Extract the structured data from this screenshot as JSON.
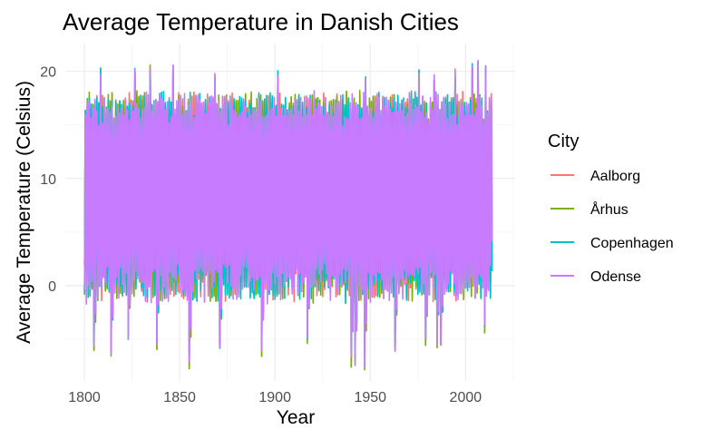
{
  "chart_data": {
    "type": "line",
    "title": "Average Temperature in Danish Cities",
    "xlabel": "Year",
    "ylabel": "Average Temperature (Celsius)",
    "xlim": [
      1790,
      2026
    ],
    "ylim": [
      -8.9,
      22.6
    ],
    "x_ticks": [
      1800,
      1850,
      1900,
      1950,
      2000
    ],
    "y_ticks": [
      0,
      10,
      20
    ],
    "grid": true,
    "legend": {
      "title": "City",
      "position": "right",
      "entries": [
        {
          "name": "Aalborg",
          "color": "#F8766D"
        },
        {
          "name": "Århus",
          "color": "#7CAE00"
        },
        {
          "name": "Copenhagen",
          "color": "#00BFC4"
        },
        {
          "name": "Odense",
          "color": "#C77CFF"
        }
      ]
    },
    "series": [
      {
        "name": "Aalborg",
        "color": "#F8766D",
        "x_range": [
          1800,
          2013
        ],
        "y_range": [
          -6.5,
          20.5
        ]
      },
      {
        "name": "Århus",
        "color": "#7CAE00",
        "x_range": [
          1800,
          2013
        ],
        "y_range": [
          -7.9,
          20.8
        ]
      },
      {
        "name": "Copenhagen",
        "color": "#00BFC4",
        "x_range": [
          1800,
          2013
        ],
        "y_range": [
          -6.5,
          20.5
        ]
      },
      {
        "name": "Odense",
        "color": "#C77CFF",
        "x_range": [
          1800,
          2013
        ],
        "y_range": [
          -7.6,
          21.4
        ]
      }
    ],
    "annual_cycle": {
      "typical_summer_max": 16.5,
      "typical_winter_min": 0.5,
      "annual_mean": 8.1
    },
    "extremes": {
      "winter_lows": [
        [
          1805,
          -6
        ],
        [
          1814,
          -6.4
        ],
        [
          1823,
          -5
        ],
        [
          1838,
          -5.5
        ],
        [
          1855,
          -7.8
        ],
        [
          1871,
          -5.8
        ],
        [
          1893,
          -6.2
        ],
        [
          1917,
          -5
        ],
        [
          1940,
          -7.5
        ],
        [
          1942,
          -7.6
        ],
        [
          1947,
          -7.9
        ],
        [
          1963,
          -6
        ],
        [
          1979,
          -5.5
        ],
        [
          1985,
          -5.4
        ],
        [
          1987,
          -5.6
        ],
        [
          2010,
          -4.2
        ]
      ],
      "summer_highs": [
        [
          1808,
          20.3
        ],
        [
          1826,
          20.3
        ],
        [
          1834,
          20.8
        ],
        [
          1846,
          20.6
        ],
        [
          1868,
          19.8
        ],
        [
          1901,
          20.1
        ],
        [
          1947,
          19.7
        ],
        [
          1975,
          20.2
        ],
        [
          1983,
          19.5
        ],
        [
          1994,
          20.2
        ],
        [
          2003,
          20.8
        ],
        [
          2006,
          21.4
        ],
        [
          2010,
          21
        ]
      ]
    }
  }
}
